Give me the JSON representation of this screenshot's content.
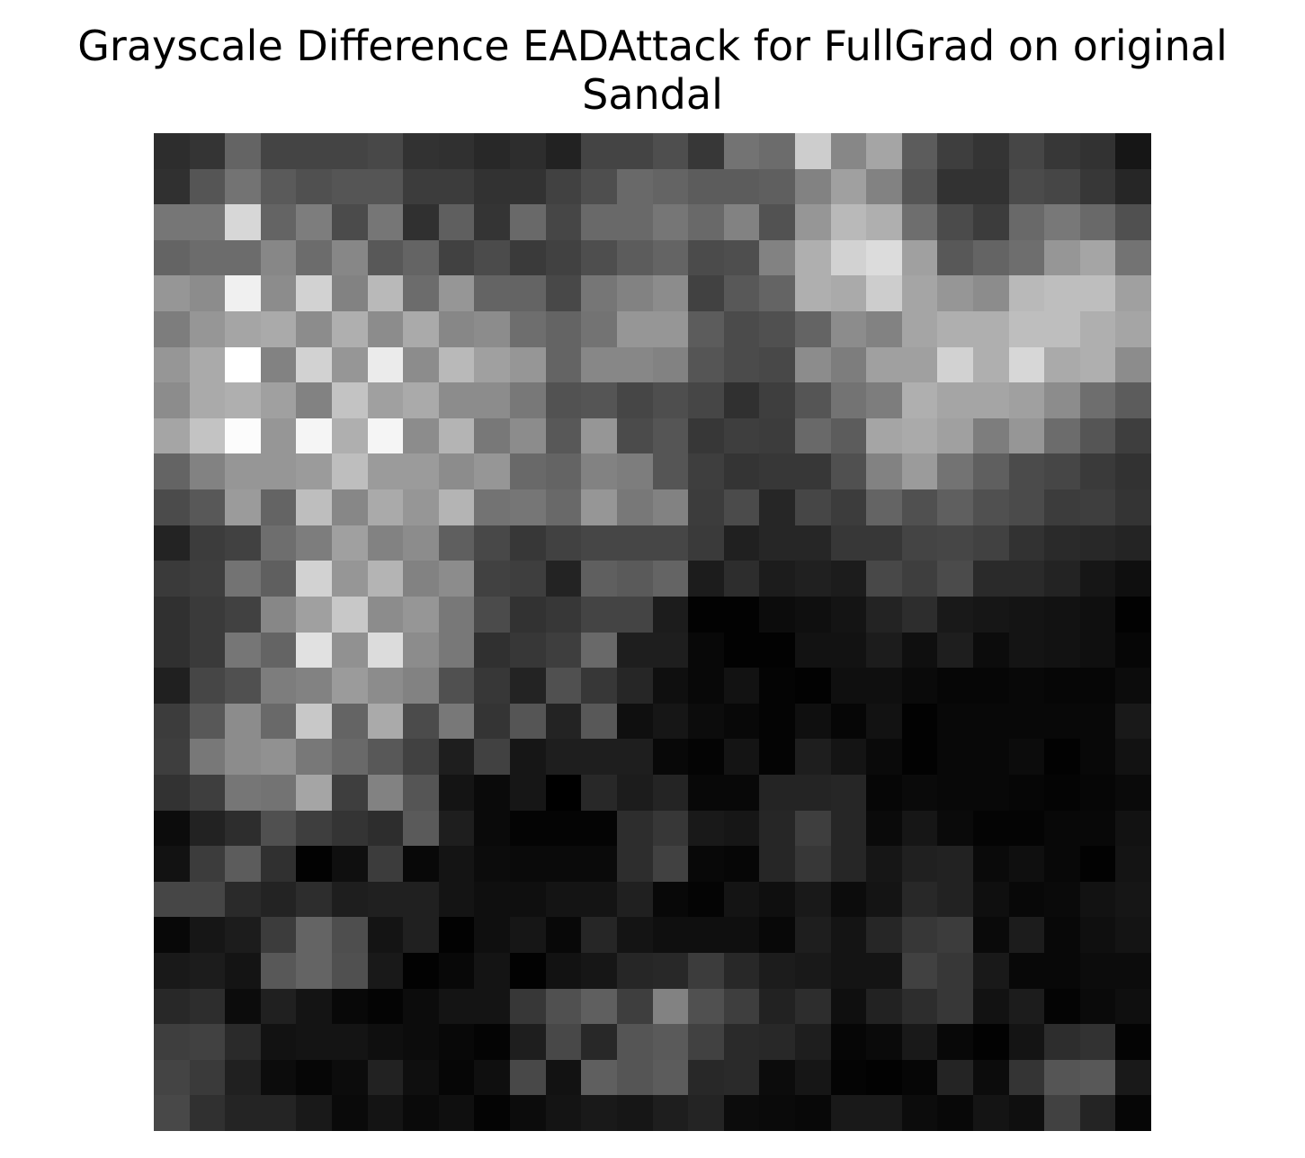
{
  "chart_data": {
    "type": "heatmap",
    "title_lines": [
      "Grayscale Difference EADAttack for FullGrad on original",
      "Sandal"
    ],
    "colormap": "gray",
    "grid": false,
    "axes_visible": false,
    "rows": 28,
    "cols": 28,
    "value_range": [
      0,
      255
    ],
    "values": [
      [
        45,
        52,
        100,
        68,
        68,
        68,
        72,
        50,
        48,
        40,
        45,
        34,
        68,
        68,
        78,
        55,
        115,
        108,
        205,
        135,
        165,
        92,
        62,
        52,
        70,
        55,
        50,
        22
      ],
      [
        48,
        85,
        115,
        90,
        80,
        85,
        85,
        60,
        60,
        50,
        50,
        65,
        78,
        105,
        100,
        92,
        92,
        95,
        130,
        160,
        130,
        85,
        50,
        50,
        75,
        70,
        55,
        38
      ],
      [
        118,
        118,
        215,
        100,
        125,
        75,
        118,
        48,
        95,
        52,
        105,
        70,
        105,
        105,
        118,
        105,
        130,
        82,
        150,
        185,
        175,
        110,
        75,
        60,
        105,
        120,
        105,
        80
      ],
      [
        100,
        108,
        108,
        135,
        108,
        135,
        88,
        100,
        65,
        75,
        58,
        65,
        78,
        92,
        100,
        75,
        78,
        130,
        175,
        210,
        220,
        160,
        88,
        100,
        110,
        150,
        165,
        115
      ],
      [
        150,
        140,
        240,
        140,
        210,
        130,
        185,
        108,
        150,
        100,
        100,
        72,
        118,
        130,
        140,
        65,
        88,
        100,
        175,
        170,
        205,
        165,
        150,
        140,
        185,
        190,
        190,
        160
      ],
      [
        125,
        150,
        165,
        170,
        140,
        175,
        140,
        170,
        135,
        140,
        110,
        100,
        115,
        150,
        150,
        92,
        75,
        80,
        100,
        140,
        130,
        165,
        175,
        175,
        190,
        190,
        175,
        165
      ],
      [
        150,
        170,
        255,
        130,
        210,
        150,
        235,
        140,
        185,
        160,
        150,
        100,
        135,
        135,
        130,
        85,
        75,
        72,
        140,
        125,
        160,
        160,
        210,
        175,
        215,
        170,
        175,
        140
      ],
      [
        140,
        170,
        175,
        160,
        130,
        195,
        160,
        170,
        140,
        140,
        120,
        82,
        85,
        70,
        78,
        70,
        48,
        62,
        85,
        115,
        125,
        175,
        165,
        165,
        160,
        140,
        110,
        92
      ],
      [
        165,
        195,
        252,
        150,
        245,
        175,
        245,
        140,
        180,
        120,
        140,
        88,
        150,
        75,
        85,
        55,
        62,
        60,
        105,
        92,
        165,
        170,
        160,
        125,
        150,
        108,
        85,
        62
      ],
      [
        100,
        130,
        150,
        150,
        155,
        190,
        155,
        155,
        140,
        150,
        105,
        100,
        130,
        125,
        85,
        62,
        52,
        55,
        55,
        80,
        130,
        155,
        115,
        95,
        75,
        70,
        58,
        50
      ],
      [
        75,
        88,
        155,
        100,
        190,
        135,
        170,
        150,
        180,
        115,
        118,
        105,
        150,
        120,
        130,
        60,
        75,
        38,
        70,
        60,
        100,
        80,
        95,
        80,
        75,
        60,
        62,
        52
      ],
      [
        35,
        60,
        65,
        110,
        125,
        160,
        130,
        140,
        95,
        72,
        55,
        65,
        70,
        70,
        70,
        58,
        32,
        38,
        38,
        55,
        55,
        68,
        70,
        65,
        50,
        42,
        40,
        36
      ],
      [
        58,
        62,
        115,
        95,
        210,
        150,
        180,
        130,
        140,
        65,
        62,
        35,
        95,
        90,
        100,
        28,
        45,
        28,
        32,
        28,
        72,
        62,
        75,
        42,
        42,
        35,
        22,
        15
      ],
      [
        48,
        58,
        65,
        135,
        160,
        200,
        140,
        150,
        120,
        75,
        50,
        55,
        68,
        68,
        28,
        2,
        2,
        12,
        15,
        20,
        35,
        45,
        25,
        22,
        20,
        18,
        15,
        2
      ],
      [
        48,
        58,
        118,
        100,
        225,
        145,
        220,
        140,
        120,
        48,
        55,
        62,
        105,
        30,
        30,
        8,
        2,
        2,
        18,
        18,
        28,
        15,
        30,
        12,
        20,
        18,
        15,
        6
      ],
      [
        32,
        70,
        80,
        125,
        130,
        155,
        140,
        130,
        80,
        55,
        35,
        80,
        55,
        38,
        15,
        8,
        18,
        4,
        2,
        15,
        15,
        10,
        6,
        6,
        8,
        6,
        6,
        12
      ],
      [
        60,
        88,
        140,
        105,
        200,
        100,
        170,
        75,
        120,
        52,
        85,
        35,
        88,
        15,
        22,
        12,
        8,
        4,
        15,
        6,
        18,
        2,
        8,
        8,
        8,
        8,
        8,
        25
      ],
      [
        62,
        120,
        140,
        145,
        120,
        105,
        88,
        65,
        30,
        65,
        22,
        30,
        30,
        30,
        8,
        4,
        20,
        4,
        30,
        20,
        10,
        2,
        8,
        8,
        12,
        2,
        8,
        18
      ],
      [
        50,
        62,
        118,
        115,
        165,
        62,
        130,
        85,
        20,
        10,
        22,
        0,
        40,
        28,
        36,
        8,
        8,
        36,
        36,
        38,
        6,
        10,
        8,
        8,
        6,
        4,
        6,
        10
      ],
      [
        12,
        34,
        45,
        80,
        62,
        52,
        45,
        90,
        30,
        10,
        4,
        4,
        4,
        45,
        55,
        25,
        22,
        38,
        62,
        38,
        10,
        22,
        10,
        4,
        4,
        8,
        8,
        18
      ],
      [
        18,
        60,
        92,
        48,
        2,
        15,
        60,
        8,
        20,
        12,
        10,
        10,
        10,
        45,
        65,
        8,
        6,
        38,
        55,
        38,
        22,
        32,
        34,
        10,
        15,
        8,
        2,
        20
      ],
      [
        70,
        70,
        42,
        35,
        45,
        30,
        32,
        32,
        20,
        15,
        15,
        20,
        20,
        32,
        8,
        4,
        20,
        15,
        25,
        12,
        20,
        40,
        34,
        15,
        8,
        10,
        18,
        22
      ],
      [
        8,
        22,
        28,
        60,
        100,
        78,
        20,
        32,
        2,
        15,
        22,
        8,
        38,
        20,
        15,
        15,
        15,
        8,
        30,
        20,
        38,
        55,
        60,
        10,
        28,
        8,
        15,
        20
      ],
      [
        25,
        28,
        20,
        88,
        100,
        80,
        25,
        2,
        8,
        20,
        2,
        18,
        22,
        38,
        40,
        60,
        40,
        28,
        25,
        20,
        20,
        65,
        55,
        25,
        8,
        8,
        12,
        12
      ],
      [
        40,
        45,
        12,
        32,
        20,
        8,
        4,
        12,
        20,
        20,
        55,
        80,
        95,
        62,
        130,
        80,
        62,
        34,
        45,
        15,
        34,
        45,
        55,
        18,
        28,
        4,
        10,
        15
      ],
      [
        62,
        65,
        42,
        18,
        20,
        20,
        15,
        12,
        8,
        4,
        30,
        72,
        40,
        85,
        90,
        65,
        42,
        40,
        30,
        6,
        10,
        25,
        8,
        2,
        20,
        45,
        50,
        4
      ],
      [
        68,
        58,
        32,
        12,
        6,
        12,
        34,
        15,
        6,
        15,
        72,
        18,
        95,
        85,
        92,
        40,
        42,
        12,
        22,
        4,
        2,
        6,
        36,
        12,
        52,
        85,
        88,
        25
      ],
      [
        72,
        48,
        36,
        36,
        25,
        10,
        20,
        10,
        15,
        4,
        12,
        20,
        25,
        22,
        30,
        36,
        12,
        10,
        8,
        25,
        25,
        12,
        8,
        20,
        15,
        65,
        36,
        6
      ]
    ]
  }
}
